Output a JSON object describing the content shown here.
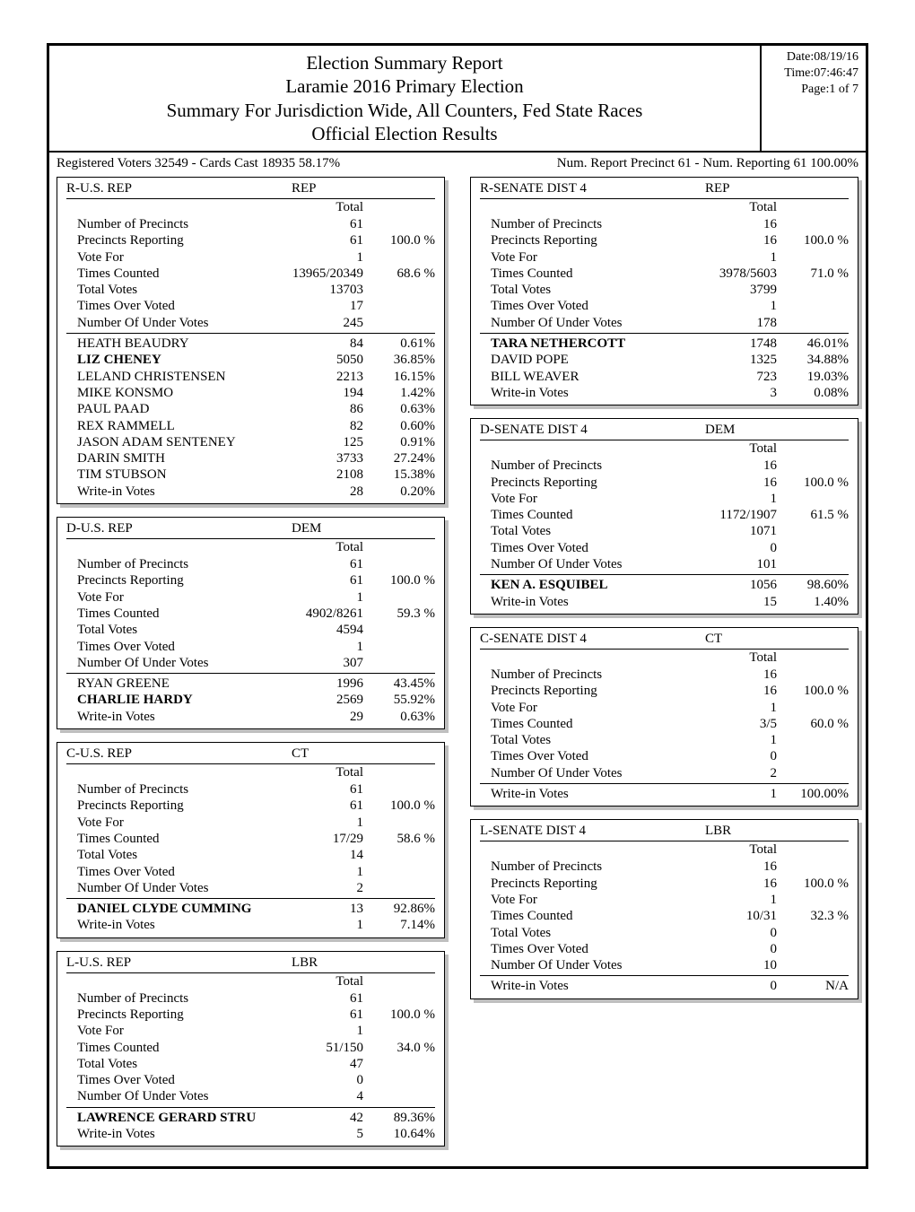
{
  "header": {
    "title_line1": "Election Summary Report",
    "title_line2": "Laramie 2016 Primary Election",
    "title_line3": "Summary For Jurisdiction Wide, All Counters, Fed  State Races",
    "title_line4": "Official Election Results",
    "date": "Date:08/19/16",
    "time": "Time:07:46:47",
    "page": "Page:1 of 7"
  },
  "stats": {
    "left": "Registered Voters 32549 - Cards Cast 18935   58.17%",
    "right": "Num. Report Precinct 61 - Num. Reporting 61    100.00%"
  },
  "col_total_label": "Total",
  "left_races": [
    {
      "title": "R-U.S. REP",
      "party": "REP",
      "rows": [
        {
          "label": "Number of Precincts",
          "val": "61",
          "pct": ""
        },
        {
          "label": "Precincts Reporting",
          "val": "61",
          "pct": "100.0  %"
        },
        {
          "label": "Vote For",
          "val": "1",
          "pct": ""
        },
        {
          "label": "Times Counted",
          "val": "13965/20349",
          "pct": "68.6  %"
        },
        {
          "label": "Total Votes",
          "val": "13703",
          "pct": ""
        },
        {
          "label": "Times Over Voted",
          "val": "17",
          "pct": ""
        },
        {
          "label": "Number Of Under Votes",
          "val": "245",
          "pct": ""
        }
      ],
      "candidates": [
        {
          "label": "HEATH BEAUDRY",
          "val": "84",
          "pct": "0.61%",
          "bold": false
        },
        {
          "label": "LIZ CHENEY",
          "val": "5050",
          "pct": "36.85%",
          "bold": true
        },
        {
          "label": "LELAND CHRISTENSEN",
          "val": "2213",
          "pct": "16.15%",
          "bold": false
        },
        {
          "label": "MIKE KONSMO",
          "val": "194",
          "pct": "1.42%",
          "bold": false
        },
        {
          "label": "PAUL PAAD",
          "val": "86",
          "pct": "0.63%",
          "bold": false
        },
        {
          "label": "REX RAMMELL",
          "val": "82",
          "pct": "0.60%",
          "bold": false
        },
        {
          "label": "JASON ADAM SENTENEY",
          "val": "125",
          "pct": "0.91%",
          "bold": false
        },
        {
          "label": "DARIN SMITH",
          "val": "3733",
          "pct": "27.24%",
          "bold": false
        },
        {
          "label": "TIM STUBSON",
          "val": "2108",
          "pct": "15.38%",
          "bold": false
        },
        {
          "label": "Write-in Votes",
          "val": "28",
          "pct": "0.20%",
          "bold": false
        }
      ]
    },
    {
      "title": "D-U.S. REP",
      "party": "DEM",
      "rows": [
        {
          "label": "Number of Precincts",
          "val": "61",
          "pct": ""
        },
        {
          "label": "Precincts Reporting",
          "val": "61",
          "pct": "100.0  %"
        },
        {
          "label": "Vote For",
          "val": "1",
          "pct": ""
        },
        {
          "label": "Times Counted",
          "val": "4902/8261",
          "pct": "59.3  %"
        },
        {
          "label": "Total Votes",
          "val": "4594",
          "pct": ""
        },
        {
          "label": "Times Over Voted",
          "val": "1",
          "pct": ""
        },
        {
          "label": "Number Of Under Votes",
          "val": "307",
          "pct": ""
        }
      ],
      "candidates": [
        {
          "label": "RYAN GREENE",
          "val": "1996",
          "pct": "43.45%",
          "bold": false
        },
        {
          "label": "CHARLIE HARDY",
          "val": "2569",
          "pct": "55.92%",
          "bold": true
        },
        {
          "label": "Write-in Votes",
          "val": "29",
          "pct": "0.63%",
          "bold": false
        }
      ]
    },
    {
      "title": "C-U.S. REP",
      "party": "CT",
      "rows": [
        {
          "label": "Number of Precincts",
          "val": "61",
          "pct": ""
        },
        {
          "label": "Precincts Reporting",
          "val": "61",
          "pct": "100.0  %"
        },
        {
          "label": "Vote For",
          "val": "1",
          "pct": ""
        },
        {
          "label": "Times Counted",
          "val": "17/29",
          "pct": "58.6  %"
        },
        {
          "label": "Total Votes",
          "val": "14",
          "pct": ""
        },
        {
          "label": "Times Over Voted",
          "val": "1",
          "pct": ""
        },
        {
          "label": "Number Of Under Votes",
          "val": "2",
          "pct": ""
        }
      ],
      "candidates": [
        {
          "label": "DANIEL CLYDE CUMMING",
          "val": "13",
          "pct": "92.86%",
          "bold": true
        },
        {
          "label": "Write-in Votes",
          "val": "1",
          "pct": "7.14%",
          "bold": false
        }
      ]
    },
    {
      "title": "L-U.S. REP",
      "party": "LBR",
      "rows": [
        {
          "label": "Number of Precincts",
          "val": "61",
          "pct": ""
        },
        {
          "label": "Precincts Reporting",
          "val": "61",
          "pct": "100.0  %"
        },
        {
          "label": "Vote For",
          "val": "1",
          "pct": ""
        },
        {
          "label": "Times Counted",
          "val": "51/150",
          "pct": "34.0  %"
        },
        {
          "label": "Total Votes",
          "val": "47",
          "pct": ""
        },
        {
          "label": "Times Over Voted",
          "val": "0",
          "pct": ""
        },
        {
          "label": "Number Of Under Votes",
          "val": "4",
          "pct": ""
        }
      ],
      "candidates": [
        {
          "label": "LAWRENCE GERARD STRU",
          "val": "42",
          "pct": "89.36%",
          "bold": true
        },
        {
          "label": "Write-in Votes",
          "val": "5",
          "pct": "10.64%",
          "bold": false
        }
      ]
    }
  ],
  "right_races": [
    {
      "title": "R-SENATE DIST 4",
      "party": "REP",
      "rows": [
        {
          "label": "Number of Precincts",
          "val": "16",
          "pct": ""
        },
        {
          "label": "Precincts Reporting",
          "val": "16",
          "pct": "100.0  %"
        },
        {
          "label": "Vote For",
          "val": "1",
          "pct": ""
        },
        {
          "label": "Times Counted",
          "val": "3978/5603",
          "pct": "71.0  %"
        },
        {
          "label": "Total Votes",
          "val": "3799",
          "pct": ""
        },
        {
          "label": "Times Over Voted",
          "val": "1",
          "pct": ""
        },
        {
          "label": "Number Of Under Votes",
          "val": "178",
          "pct": ""
        }
      ],
      "candidates": [
        {
          "label": "TARA NETHERCOTT",
          "val": "1748",
          "pct": "46.01%",
          "bold": true
        },
        {
          "label": "DAVID POPE",
          "val": "1325",
          "pct": "34.88%",
          "bold": false
        },
        {
          "label": "BILL WEAVER",
          "val": "723",
          "pct": "19.03%",
          "bold": false
        },
        {
          "label": "Write-in Votes",
          "val": "3",
          "pct": "0.08%",
          "bold": false
        }
      ]
    },
    {
      "title": "D-SENATE DIST 4",
      "party": "DEM",
      "rows": [
        {
          "label": "Number of Precincts",
          "val": "16",
          "pct": ""
        },
        {
          "label": "Precincts Reporting",
          "val": "16",
          "pct": "100.0  %"
        },
        {
          "label": "Vote For",
          "val": "1",
          "pct": ""
        },
        {
          "label": "Times Counted",
          "val": "1172/1907",
          "pct": "61.5  %"
        },
        {
          "label": "Total Votes",
          "val": "1071",
          "pct": ""
        },
        {
          "label": "Times Over Voted",
          "val": "0",
          "pct": ""
        },
        {
          "label": "Number Of Under Votes",
          "val": "101",
          "pct": ""
        }
      ],
      "candidates": [
        {
          "label": "KEN A. ESQUIBEL",
          "val": "1056",
          "pct": "98.60%",
          "bold": true
        },
        {
          "label": "Write-in Votes",
          "val": "15",
          "pct": "1.40%",
          "bold": false
        }
      ]
    },
    {
      "title": "C-SENATE DIST 4",
      "party": "CT",
      "rows": [
        {
          "label": "Number of Precincts",
          "val": "16",
          "pct": ""
        },
        {
          "label": "Precincts Reporting",
          "val": "16",
          "pct": "100.0  %"
        },
        {
          "label": "Vote For",
          "val": "1",
          "pct": ""
        },
        {
          "label": "Times Counted",
          "val": "3/5",
          "pct": "60.0  %"
        },
        {
          "label": "Total Votes",
          "val": "1",
          "pct": ""
        },
        {
          "label": "Times Over Voted",
          "val": "0",
          "pct": ""
        },
        {
          "label": "Number Of Under Votes",
          "val": "2",
          "pct": ""
        }
      ],
      "candidates": [
        {
          "label": "Write-in Votes",
          "val": "1",
          "pct": "100.00%",
          "bold": false
        }
      ]
    },
    {
      "title": "L-SENATE DIST 4",
      "party": "LBR",
      "rows": [
        {
          "label": "Number of Precincts",
          "val": "16",
          "pct": ""
        },
        {
          "label": "Precincts Reporting",
          "val": "16",
          "pct": "100.0  %"
        },
        {
          "label": "Vote For",
          "val": "1",
          "pct": ""
        },
        {
          "label": "Times Counted",
          "val": "10/31",
          "pct": "32.3  %"
        },
        {
          "label": "Total Votes",
          "val": "0",
          "pct": ""
        },
        {
          "label": "Times Over Voted",
          "val": "0",
          "pct": ""
        },
        {
          "label": "Number Of Under Votes",
          "val": "10",
          "pct": ""
        }
      ],
      "candidates": [
        {
          "label": "Write-in Votes",
          "val": "0",
          "pct": "N/A",
          "bold": false
        }
      ]
    }
  ]
}
